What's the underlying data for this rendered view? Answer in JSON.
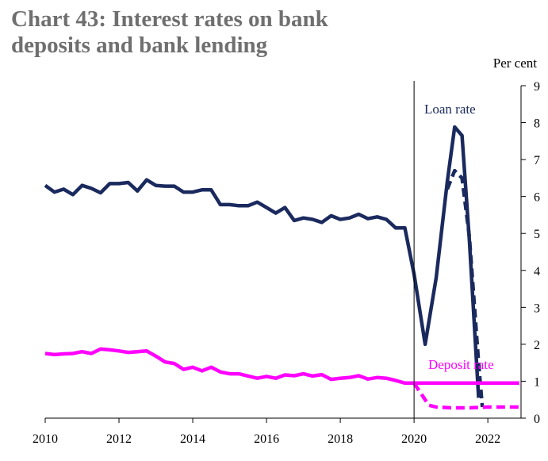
{
  "title": {
    "line1": "Chart 43:  Interest rates on bank",
    "line2": "deposits and bank lending"
  },
  "chart_data": {
    "type": "line",
    "title": "Chart 43: Interest rates on bank deposits and bank lending",
    "ylabel": "Per cent",
    "xlim": [
      2010,
      2022.9
    ],
    "ylim": [
      0,
      9
    ],
    "x_ticks": [
      2010,
      2012,
      2014,
      2016,
      2018,
      2020,
      2022
    ],
    "y_ticks": [
      0,
      1,
      2,
      3,
      4,
      5,
      6,
      7,
      8,
      9
    ],
    "y_axis_side": "right",
    "vline_x": 2020,
    "grid": false,
    "series": [
      {
        "name": "Loan rate",
        "color": "#1a2a5e",
        "style": "solid",
        "x": [
          2010.0,
          2010.25,
          2010.5,
          2010.75,
          2011.0,
          2011.25,
          2011.5,
          2011.75,
          2012.0,
          2012.25,
          2012.5,
          2012.75,
          2013.0,
          2013.25,
          2013.5,
          2013.75,
          2014.0,
          2014.25,
          2014.5,
          2014.75,
          2015.0,
          2015.25,
          2015.5,
          2015.75,
          2016.0,
          2016.25,
          2016.5,
          2016.75,
          2017.0,
          2017.25,
          2017.5,
          2017.75,
          2018.0,
          2018.25,
          2018.5,
          2018.75,
          2019.0,
          2019.25,
          2019.5,
          2019.75,
          2020.0,
          2020.3,
          2020.6,
          2020.9,
          2021.1,
          2021.3,
          2021.5,
          2021.75
        ],
        "y": [
          6.3,
          6.12,
          6.2,
          6.05,
          6.3,
          6.22,
          6.1,
          6.35,
          6.35,
          6.38,
          6.15,
          6.45,
          6.3,
          6.28,
          6.28,
          6.12,
          6.12,
          6.18,
          6.18,
          5.78,
          5.78,
          5.75,
          5.75,
          5.85,
          5.7,
          5.55,
          5.7,
          5.35,
          5.42,
          5.38,
          5.3,
          5.48,
          5.38,
          5.42,
          5.52,
          5.4,
          5.45,
          5.38,
          5.15,
          5.15,
          3.9,
          2.0,
          3.8,
          6.4,
          7.88,
          7.65,
          4.8,
          0.55
        ]
      },
      {
        "name": "",
        "color": "#1a2a5e",
        "style": "dashed",
        "x": [
          2020.9,
          2021.1,
          2021.3,
          2021.5,
          2021.75,
          2021.85
        ],
        "y": [
          6.2,
          6.7,
          6.5,
          4.9,
          1.5,
          0.3
        ]
      },
      {
        "name": "Deposit rate",
        "color": "#ff00ff",
        "style": "solid",
        "x": [
          2010.0,
          2010.25,
          2010.5,
          2010.75,
          2011.0,
          2011.25,
          2011.5,
          2011.75,
          2012.0,
          2012.25,
          2012.5,
          2012.75,
          2013.0,
          2013.25,
          2013.5,
          2013.75,
          2014.0,
          2014.25,
          2014.5,
          2014.75,
          2015.0,
          2015.25,
          2015.5,
          2015.75,
          2016.0,
          2016.25,
          2016.5,
          2016.75,
          2017.0,
          2017.25,
          2017.5,
          2017.75,
          2018.0,
          2018.25,
          2018.5,
          2018.75,
          2019.0,
          2019.25,
          2019.5,
          2019.75,
          2020.0,
          2021.0,
          2022.0,
          2022.85
        ],
        "y": [
          1.75,
          1.72,
          1.74,
          1.75,
          1.8,
          1.75,
          1.87,
          1.85,
          1.82,
          1.78,
          1.8,
          1.82,
          1.68,
          1.52,
          1.48,
          1.32,
          1.38,
          1.28,
          1.38,
          1.25,
          1.2,
          1.2,
          1.14,
          1.08,
          1.13,
          1.08,
          1.17,
          1.15,
          1.2,
          1.14,
          1.18,
          1.05,
          1.08,
          1.1,
          1.15,
          1.06,
          1.1,
          1.08,
          1.02,
          0.95,
          0.95,
          0.95,
          0.95,
          0.95
        ]
      },
      {
        "name": "",
        "color": "#ff00ff",
        "style": "dashed",
        "x": [
          2020.0,
          2020.2,
          2020.4,
          2020.6,
          2021.0,
          2021.5,
          2022.0,
          2022.85
        ],
        "y": [
          0.95,
          0.65,
          0.35,
          0.3,
          0.28,
          0.28,
          0.3,
          0.3
        ]
      }
    ],
    "annotations": [
      {
        "text": "Loan rate",
        "color": "#1a2a5e"
      },
      {
        "text": "Deposit rate",
        "color": "#ff00ff"
      }
    ]
  }
}
